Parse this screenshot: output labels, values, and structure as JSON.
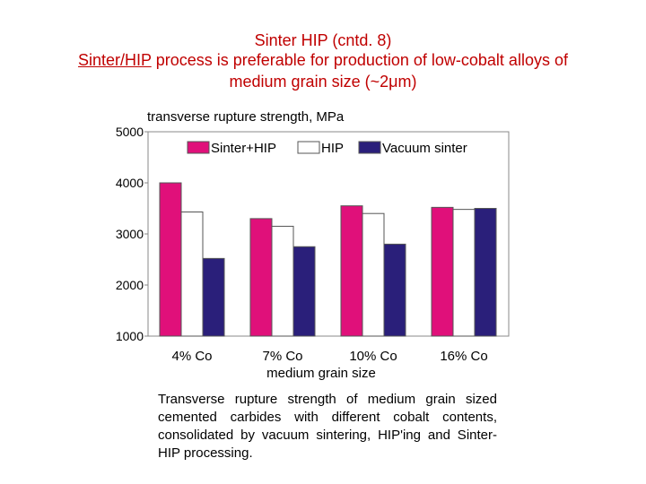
{
  "slide": {
    "title_line1": "Sinter HIP (cntd. 8)",
    "title_line2_underlined": "Sinter/HIP",
    "title_line2_rest": " process is preferable for production of low-cobalt alloys of",
    "title_line3": "medium grain size (~2μm)",
    "caption": "Transverse rupture strength of medium grain sized cemented carbides with different cobalt contents, consolidated by vacuum sintering, HIP'ing and Sinter-HIP processing."
  },
  "chart_data": {
    "type": "bar",
    "ylabel": "transverse rupture strength, MPa",
    "xlabel": "medium grain size",
    "categories": [
      "4% Co",
      "7% Co",
      "10% Co",
      "16% Co"
    ],
    "ylim": [
      1000,
      5000
    ],
    "yticks": [
      1000,
      2000,
      3000,
      4000,
      5000
    ],
    "legend_position": "top",
    "series": [
      {
        "name": "Sinter+HIP",
        "color": "#e0107a",
        "values": [
          4000,
          3300,
          3550,
          3520
        ]
      },
      {
        "name": "HIP",
        "color": "#ffffff",
        "values": [
          3430,
          3150,
          3400,
          3480
        ]
      },
      {
        "name": "Vacuum sinter",
        "color": "#2a1f7a",
        "values": [
          2520,
          2750,
          2800,
          3500
        ]
      }
    ]
  }
}
